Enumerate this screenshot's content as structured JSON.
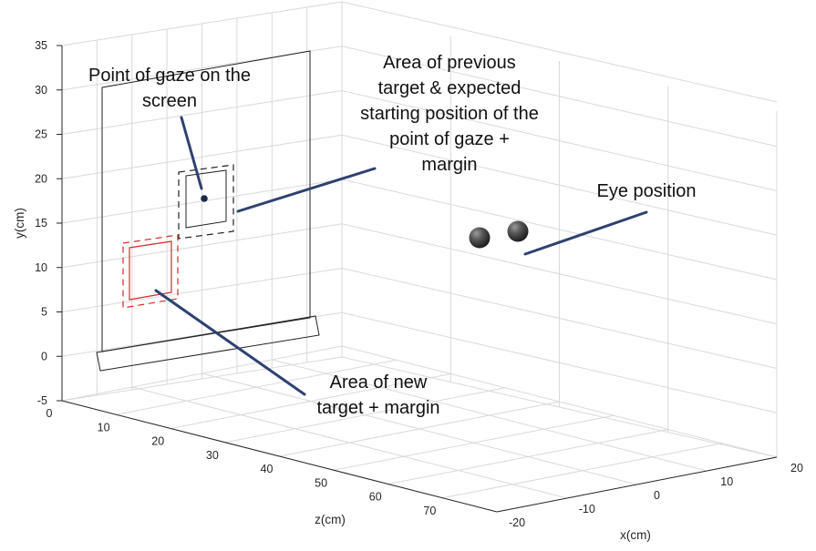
{
  "axes": {
    "y_label": "y(cm)",
    "z_label": "z(cm)",
    "x_label": "x(cm)",
    "y_ticks": [
      "35",
      "30",
      "25",
      "20",
      "15",
      "10",
      "5",
      "0",
      "-5"
    ],
    "z_ticks": [
      "0",
      "10",
      "20",
      "30",
      "40",
      "50",
      "60",
      "70"
    ],
    "x_ticks": [
      "-20",
      "-10",
      "0",
      "10",
      "20"
    ]
  },
  "annotations": {
    "gaze_line1": "Point of gaze on the",
    "gaze_line2": "screen",
    "prev_line1": "Area of previous",
    "prev_line2": "target & expected",
    "prev_line3": "starting position of the",
    "prev_line4": "point of gaze  +",
    "prev_line5": "margin",
    "eye": "Eye position",
    "new_line1": "Area of new",
    "new_line2": "target + margin"
  },
  "colors": {
    "callout": "#2e4170",
    "new_target": "#d62728",
    "previous_target": "#222222",
    "gaze_point": "#1c2a4a"
  }
}
